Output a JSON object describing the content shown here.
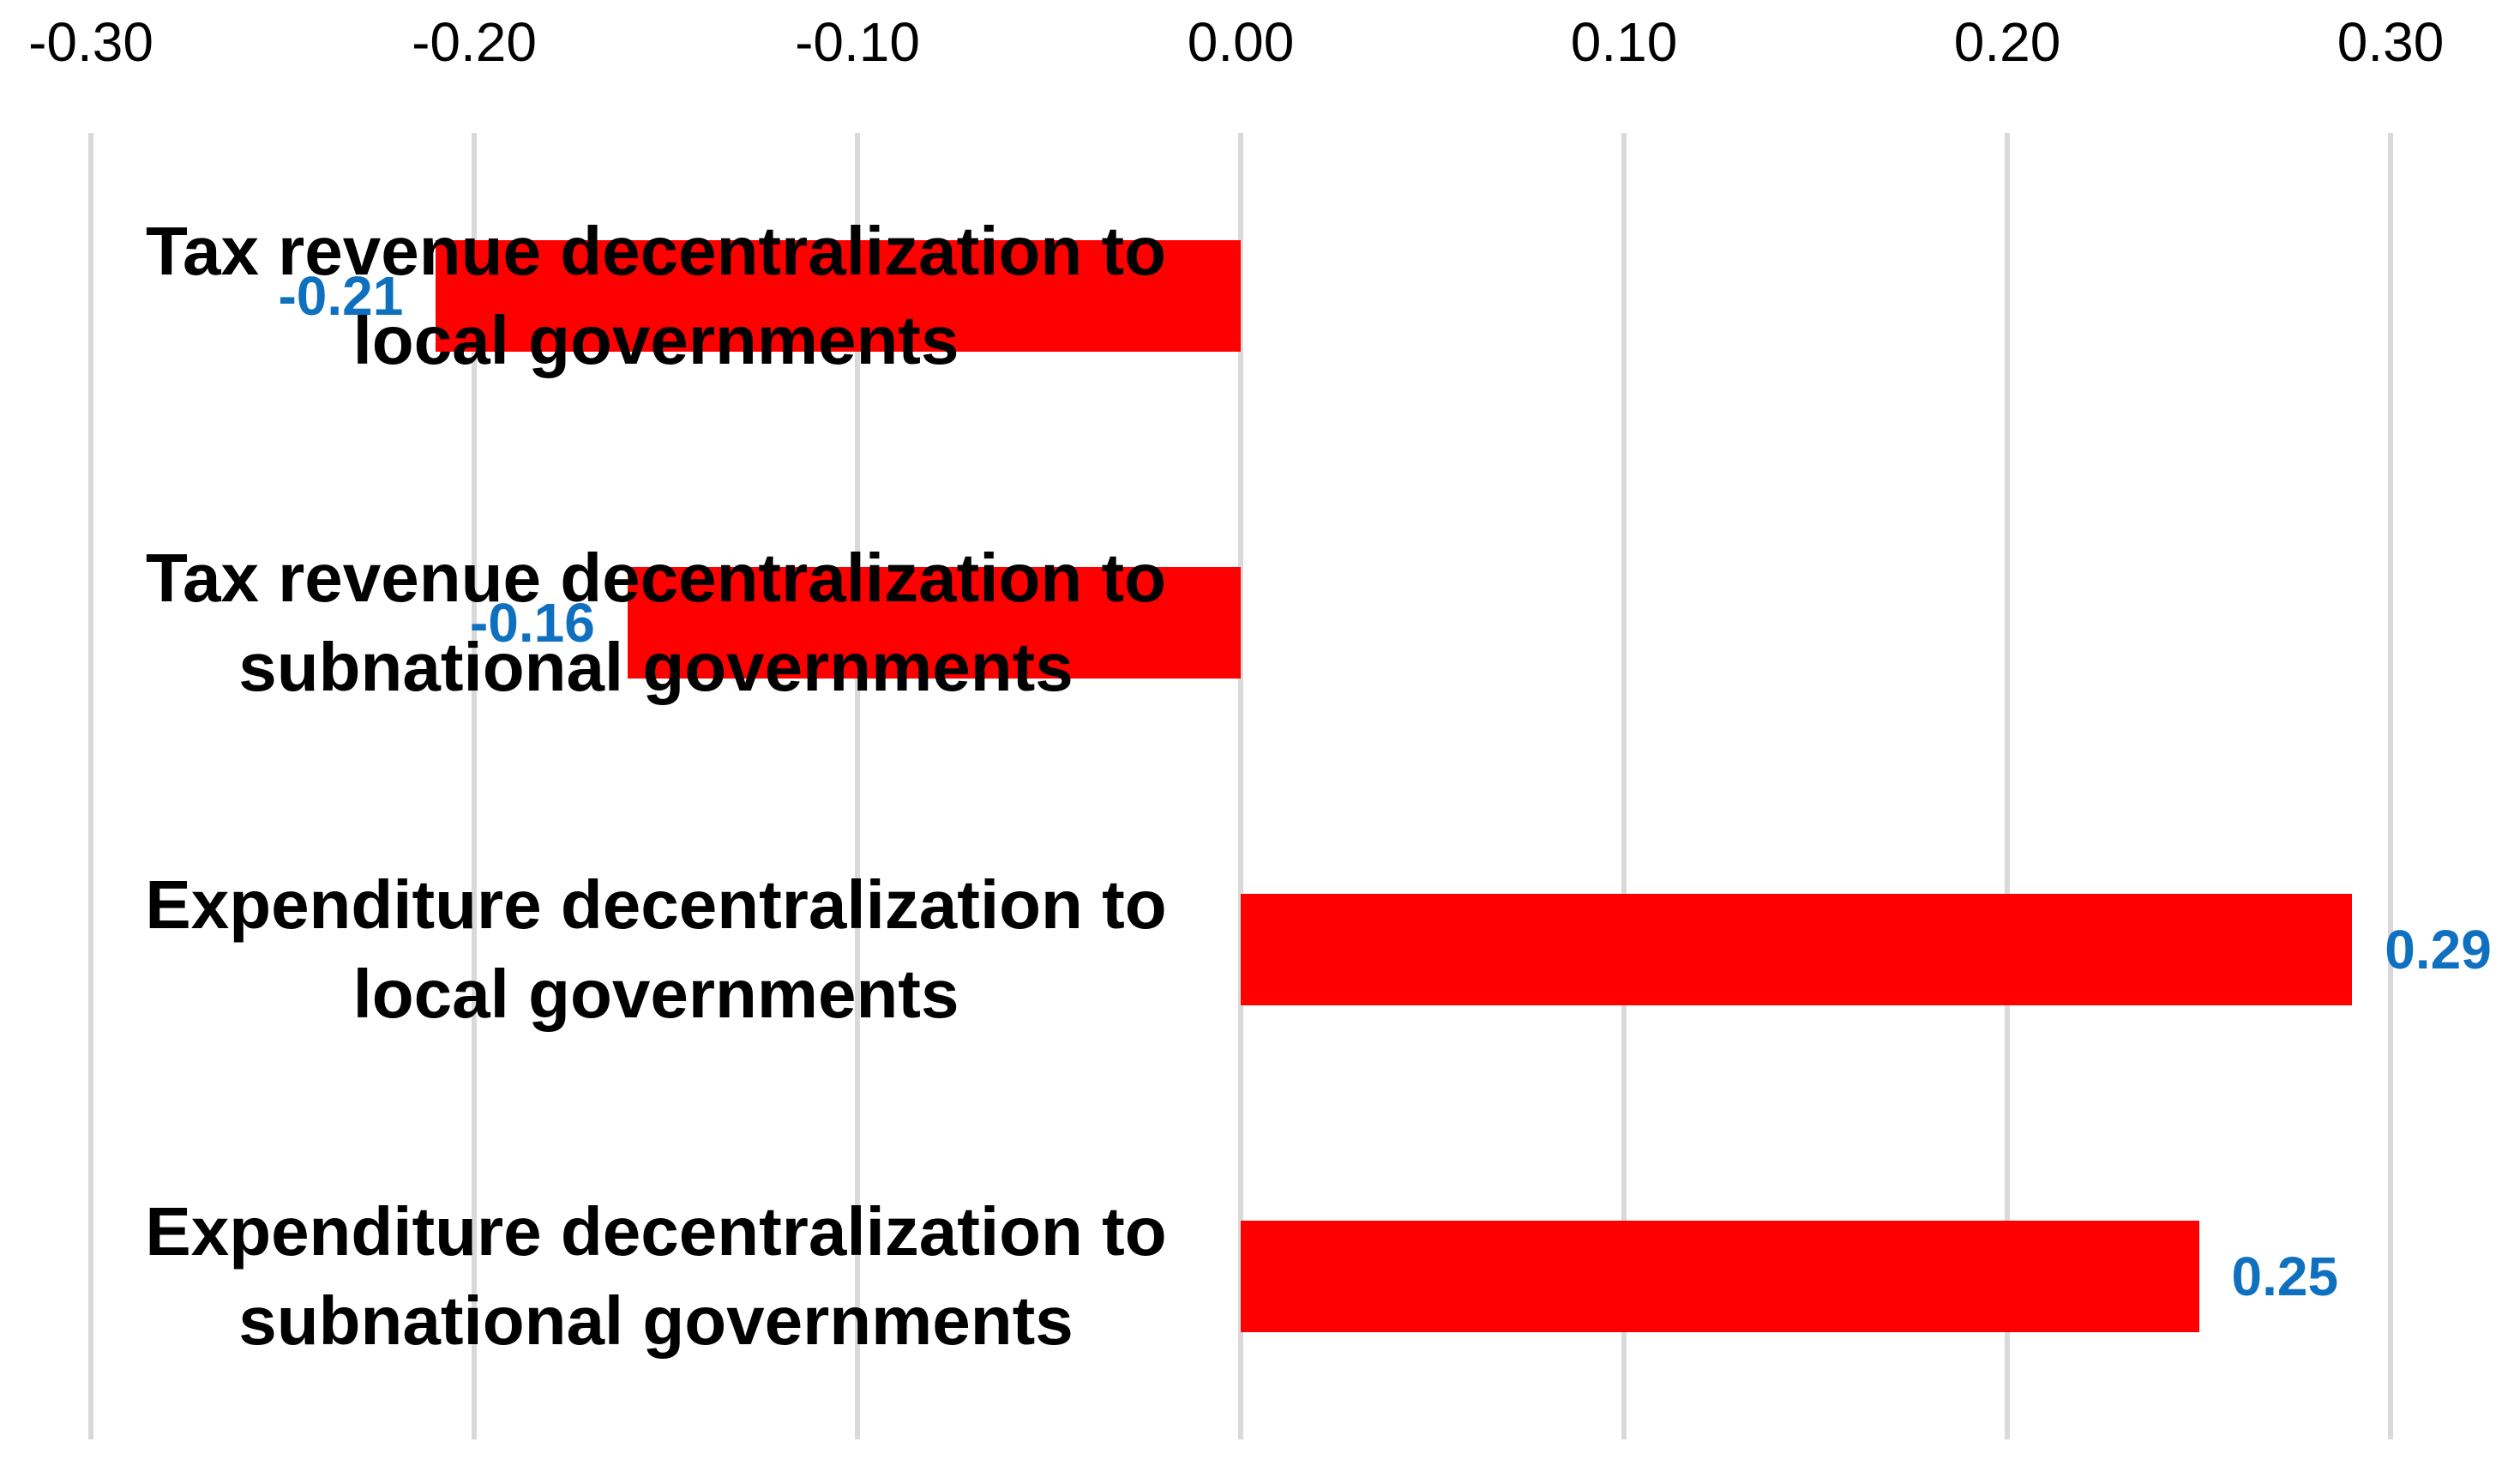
{
  "chart_data": {
    "type": "bar",
    "orientation": "horizontal",
    "title": "",
    "xlabel": "",
    "ylabel": "",
    "categories": [
      "Tax revenue decentralization to local governments",
      "Tax revenue decentralization to subnational governments",
      "Expenditure decentralization to local governments",
      "Expenditure decentralization to subnational governments"
    ],
    "category_lines": [
      [
        "Tax revenue decentralization to",
        "local governments"
      ],
      [
        "Tax revenue decentralization to",
        "subnational governments"
      ],
      [
        "Expenditure decentralization to",
        "local governments"
      ],
      [
        "Expenditure decentralization to",
        "subnational governments"
      ]
    ],
    "values": [
      -0.21,
      -0.16,
      0.29,
      0.25
    ],
    "value_labels": [
      "-0.21",
      "-0.16",
      "0.29",
      "0.25"
    ],
    "xlim": [
      -0.3,
      0.3
    ],
    "x_ticks": [
      -0.3,
      -0.2,
      -0.1,
      0.0,
      0.1,
      0.2,
      0.3
    ],
    "x_tick_labels": [
      "-0.30",
      "-0.20",
      "-0.10",
      "0.00",
      "0.10",
      "0.20",
      "0.30"
    ],
    "x_axis_position": "top",
    "grid": "vertical",
    "legend_position": "none",
    "colors": {
      "bar": "#FF0000",
      "value_label": "#1070C0",
      "gridline": "#D9D9D9",
      "tick_text": "#000000",
      "category_text": "#000000",
      "background": "#FFFFFF"
    }
  }
}
